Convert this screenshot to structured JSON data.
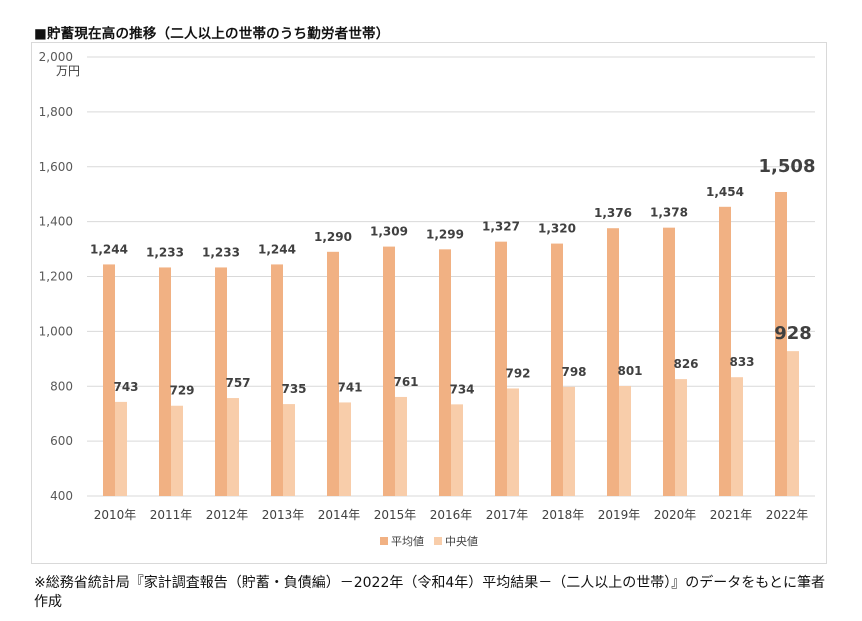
{
  "title": "■貯蓄現在高の推移（二人以上の世帯のうち勤労者世帯）",
  "note": "※総務省統計局『家計調査報告（貯蓄・負債編）－2022年（令和4年）平均結果－（二人以上の世帯）』のデータをもとに筆者作成",
  "colors": {
    "mean": "#f1b183",
    "median": "#f8cdaa",
    "grid": "#d9d9d9",
    "label": "#404040"
  },
  "chart_data": {
    "type": "bar",
    "categories": [
      "2010年",
      "2011年",
      "2012年",
      "2013年",
      "2014年",
      "2015年",
      "2016年",
      "2017年",
      "2018年",
      "2019年",
      "2020年",
      "2021年",
      "2022年"
    ],
    "series": [
      {
        "name": "平均値",
        "values": [
          1244,
          1233,
          1233,
          1244,
          1290,
          1309,
          1299,
          1327,
          1320,
          1376,
          1378,
          1454,
          1508
        ]
      },
      {
        "name": "中央値",
        "values": [
          743,
          729,
          757,
          735,
          741,
          761,
          734,
          792,
          798,
          801,
          826,
          833,
          928
        ]
      }
    ],
    "ylim": [
      400,
      2000
    ],
    "yticks": [
      400,
      600,
      800,
      1000,
      1200,
      1400,
      1600,
      1800,
      2000
    ],
    "ylabel": "万円",
    "grid": true,
    "legend": "bottom",
    "highlight_last": true
  }
}
